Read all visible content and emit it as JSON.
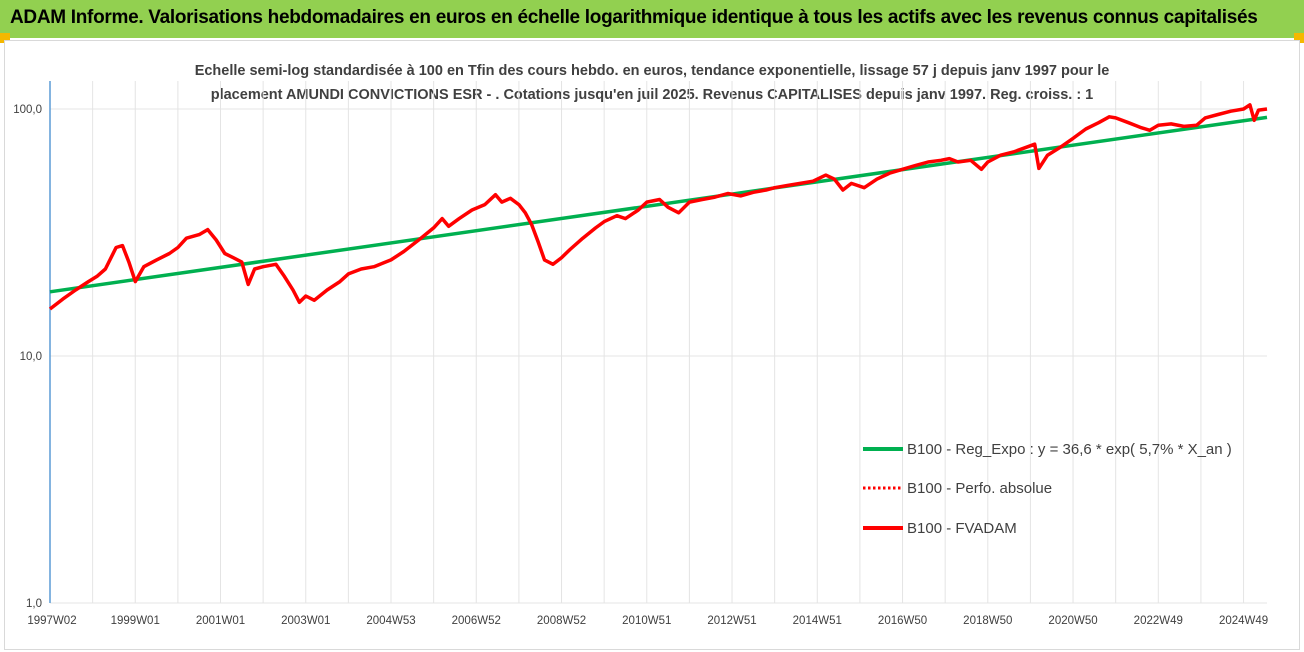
{
  "header": {
    "title": "ADAM Informe. Valorisations hebdomadaires en euros en échelle logarithmique identique à tous les actifs avec les revenus connus capitalisés"
  },
  "colors": {
    "banner": "#92d050",
    "accent_corner": "#f5b800",
    "trend": "#00b050",
    "series": "#ff0000"
  },
  "chart_data": {
    "type": "line",
    "title_lines": [
      "Echelle semi-log standardisée à 100 en Tfin des cours hebdo. en euros, tendance exponentielle, lissage 57 j depuis janv 1997 pour le",
      "placement AMUNDI CONVICTIONS ESR - . Cotations jusqu'en juil 2025. Revenus CAPITALISES depuis janv 1997.  Reg. croiss. : 1"
    ],
    "y_scale": "log",
    "ylim": [
      1,
      100
    ],
    "y_ticks": [
      {
        "value": 1,
        "label": "1,0"
      },
      {
        "value": 10,
        "label": "10,0"
      },
      {
        "value": 100,
        "label": "100,0"
      }
    ],
    "xlim": [
      1997.0,
      2025.55
    ],
    "x_ticks": [
      {
        "value": 1997.0,
        "label": "1997W02"
      },
      {
        "value": 1999.0,
        "label": "1999W01"
      },
      {
        "value": 2001.0,
        "label": "2001W01"
      },
      {
        "value": 2003.0,
        "label": "2003W01"
      },
      {
        "value": 2005.0,
        "label": "2004W53"
      },
      {
        "value": 2007.0,
        "label": "2006W52"
      },
      {
        "value": 2009.0,
        "label": "2008W52"
      },
      {
        "value": 2011.0,
        "label": "2010W51"
      },
      {
        "value": 2013.0,
        "label": "2012W51"
      },
      {
        "value": 2015.0,
        "label": "2014W51"
      },
      {
        "value": 2017.0,
        "label": "2016W50"
      },
      {
        "value": 2019.0,
        "label": "2018W50"
      },
      {
        "value": 2021.0,
        "label": "2020W50"
      },
      {
        "value": 2023.0,
        "label": "2022W49"
      },
      {
        "value": 2025.0,
        "label": "2024W49"
      }
    ],
    "grid": {
      "vertical": true,
      "horizontal": true
    },
    "legend_position": "bottom-right",
    "series": [
      {
        "name": "B100 - Reg_Expo : y = 36,6 * exp( 5,7% *  X_an )",
        "style": "solid",
        "color": "#00b050",
        "points": [
          [
            1997.0,
            18.2
          ],
          [
            2025.55,
            92.5
          ]
        ]
      },
      {
        "name": "B100 - Perfo. absolue",
        "style": "dotted",
        "color": "#ff0000",
        "points": []
      },
      {
        "name": "B100 - FVADAM",
        "style": "solid",
        "color": "#ff0000",
        "points": [
          [
            1997.0,
            15.5
          ],
          [
            1997.3,
            17.0
          ],
          [
            1997.6,
            18.5
          ],
          [
            1997.9,
            20.0
          ],
          [
            1998.1,
            21.0
          ],
          [
            1998.3,
            22.5
          ],
          [
            1998.55,
            27.5
          ],
          [
            1998.7,
            28.0
          ],
          [
            1998.85,
            24.0
          ],
          [
            1999.0,
            20.0
          ],
          [
            1999.2,
            23.0
          ],
          [
            1999.5,
            24.5
          ],
          [
            1999.8,
            26.0
          ],
          [
            2000.0,
            27.5
          ],
          [
            2000.2,
            30.0
          ],
          [
            2000.5,
            31.0
          ],
          [
            2000.7,
            32.5
          ],
          [
            2000.9,
            29.5
          ],
          [
            2001.1,
            26.0
          ],
          [
            2001.3,
            25.0
          ],
          [
            2001.5,
            24.0
          ],
          [
            2001.65,
            19.5
          ],
          [
            2001.8,
            22.5
          ],
          [
            2002.0,
            23.0
          ],
          [
            2002.3,
            23.5
          ],
          [
            2002.5,
            21.0
          ],
          [
            2002.7,
            18.5
          ],
          [
            2002.85,
            16.5
          ],
          [
            2003.0,
            17.5
          ],
          [
            2003.2,
            16.8
          ],
          [
            2003.5,
            18.5
          ],
          [
            2003.8,
            20.0
          ],
          [
            2004.0,
            21.5
          ],
          [
            2004.3,
            22.5
          ],
          [
            2004.6,
            23.0
          ],
          [
            2005.0,
            24.5
          ],
          [
            2005.3,
            26.5
          ],
          [
            2005.7,
            30.0
          ],
          [
            2006.0,
            33.0
          ],
          [
            2006.2,
            36.0
          ],
          [
            2006.35,
            33.5
          ],
          [
            2006.6,
            36.0
          ],
          [
            2006.9,
            39.0
          ],
          [
            2007.2,
            41.0
          ],
          [
            2007.45,
            45.0
          ],
          [
            2007.6,
            42.0
          ],
          [
            2007.8,
            43.5
          ],
          [
            2008.0,
            41.0
          ],
          [
            2008.15,
            38.0
          ],
          [
            2008.3,
            34.0
          ],
          [
            2008.45,
            29.0
          ],
          [
            2008.6,
            24.5
          ],
          [
            2008.8,
            23.5
          ],
          [
            2009.0,
            25.0
          ],
          [
            2009.2,
            27.0
          ],
          [
            2009.5,
            30.0
          ],
          [
            2009.8,
            33.0
          ],
          [
            2010.0,
            35.0
          ],
          [
            2010.3,
            37.0
          ],
          [
            2010.5,
            36.0
          ],
          [
            2010.8,
            39.0
          ],
          [
            2011.0,
            42.0
          ],
          [
            2011.3,
            43.0
          ],
          [
            2011.5,
            40.0
          ],
          [
            2011.75,
            38.0
          ],
          [
            2012.0,
            42.0
          ],
          [
            2012.3,
            43.0
          ],
          [
            2012.6,
            44.0
          ],
          [
            2012.9,
            45.5
          ],
          [
            2013.2,
            44.5
          ],
          [
            2013.5,
            46.0
          ],
          [
            2013.8,
            47.0
          ],
          [
            2014.0,
            48.0
          ],
          [
            2014.3,
            49.0
          ],
          [
            2014.6,
            50.0
          ],
          [
            2014.9,
            51.0
          ],
          [
            2015.2,
            54.0
          ],
          [
            2015.4,
            52.0
          ],
          [
            2015.6,
            47.0
          ],
          [
            2015.8,
            50.0
          ],
          [
            2016.1,
            48.0
          ],
          [
            2016.4,
            52.0
          ],
          [
            2016.7,
            55.0
          ],
          [
            2017.0,
            57.0
          ],
          [
            2017.3,
            59.0
          ],
          [
            2017.6,
            61.0
          ],
          [
            2017.9,
            62.0
          ],
          [
            2018.1,
            63.0
          ],
          [
            2018.3,
            61.0
          ],
          [
            2018.6,
            62.0
          ],
          [
            2018.85,
            57.0
          ],
          [
            2019.0,
            61.0
          ],
          [
            2019.3,
            65.0
          ],
          [
            2019.6,
            67.0
          ],
          [
            2019.9,
            70.0
          ],
          [
            2020.1,
            72.0
          ],
          [
            2020.2,
            57.5
          ],
          [
            2020.4,
            65.0
          ],
          [
            2020.7,
            70.0
          ],
          [
            2021.0,
            76.0
          ],
          [
            2021.3,
            83.0
          ],
          [
            2021.6,
            88.0
          ],
          [
            2021.85,
            93.0
          ],
          [
            2022.0,
            92.0
          ],
          [
            2022.3,
            88.0
          ],
          [
            2022.6,
            84.0
          ],
          [
            2022.8,
            82.0
          ],
          [
            2023.0,
            86.0
          ],
          [
            2023.3,
            87.0
          ],
          [
            2023.6,
            85.0
          ],
          [
            2023.9,
            86.0
          ],
          [
            2024.1,
            92.0
          ],
          [
            2024.4,
            95.0
          ],
          [
            2024.7,
            98.0
          ],
          [
            2025.0,
            100.0
          ],
          [
            2025.15,
            104.0
          ],
          [
            2025.25,
            90.0
          ],
          [
            2025.35,
            99.0
          ],
          [
            2025.55,
            100.0
          ]
        ]
      }
    ]
  }
}
